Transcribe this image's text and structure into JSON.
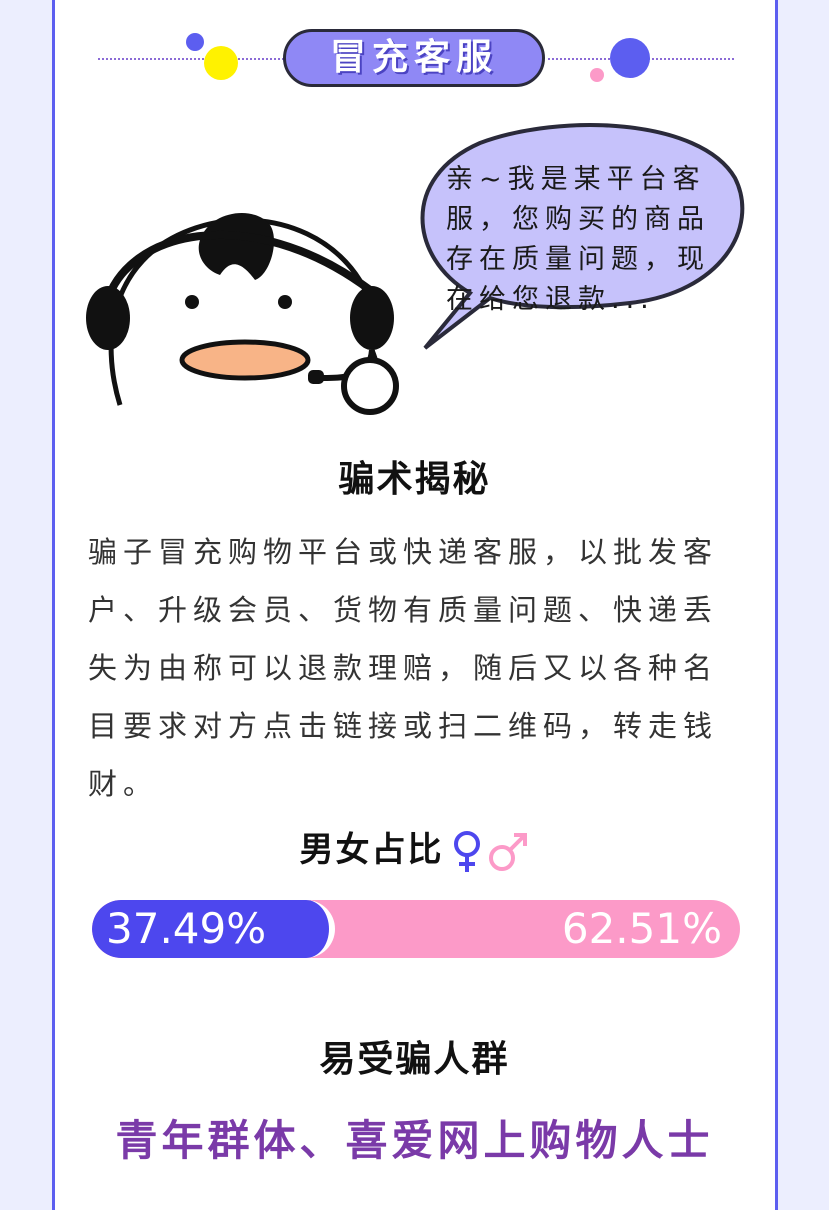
{
  "header": {
    "title": "冒充客服"
  },
  "bubble": {
    "lines": [
      "亲~我是某平台客",
      "服，您购买的商品",
      "存在质量问题，现",
      "在给您退款..."
    ]
  },
  "section1": {
    "title": "骗术揭秘",
    "lines": [
      "骗子冒充购物平台或快递客服，以批发客",
      "户、升级会员、货物有质量问题、快递丢",
      "失为由称可以退款理赔，随后又以各种名",
      "目要求对方点击链接或扫二维码，转走钱",
      "财。"
    ]
  },
  "section2": {
    "title": "男女占比",
    "female_pct": 37.49,
    "female_label": "37.49%",
    "male_label": "62.51%",
    "colors": {
      "female": "#4d47ee",
      "male": "#fc9ac8"
    }
  },
  "section3": {
    "title": "易受骗人群",
    "groups": "青年群体、喜爱网上购物人士"
  }
}
